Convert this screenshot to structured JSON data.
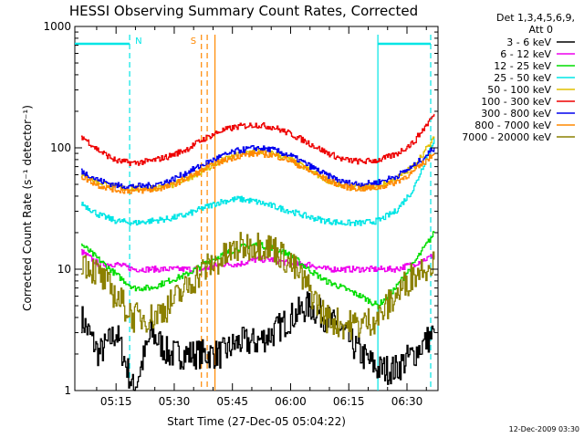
{
  "chart_data": {
    "type": "line",
    "title": "HESSI Observing Summary Count Rates, Corrected",
    "xlabel": "Start Time (27-Dec-05 05:04:22)",
    "ylabel": "Corrected Count Rate (s⁻¹ detector⁻¹)",
    "yscale": "log",
    "ylim": [
      1,
      1000
    ],
    "y_ticks": [
      "1",
      "10",
      "100",
      "1000"
    ],
    "x_ticks": [
      "05:15",
      "05:30",
      "05:45",
      "06:00",
      "06:15",
      "06:30"
    ],
    "x_tick_minutes": [
      15,
      30,
      45,
      60,
      75,
      90
    ],
    "xlim_minutes": [
      4.37,
      98
    ],
    "grid": false,
    "legend_header": [
      "Det 1,3,4,5,6,9,",
      "Att 0"
    ],
    "legend_placement": "right",
    "series": [
      {
        "name": "3 - 6 keV",
        "color": "#000000",
        "values": [
          4,
          2,
          3,
          1,
          3,
          2,
          2,
          2,
          2,
          2.5,
          2.5,
          3,
          4,
          5,
          4,
          3,
          2,
          1.5,
          1.5,
          2,
          3
        ]
      },
      {
        "name": "6 - 12 keV",
        "color": "#ee00ee",
        "values": [
          14,
          11,
          11,
          10,
          10,
          10,
          10,
          10,
          11,
          11,
          12,
          12,
          11,
          11,
          10,
          10,
          10,
          10,
          10,
          11,
          13
        ]
      },
      {
        "name": "12 - 25 keV",
        "color": "#00dd00",
        "values": [
          16,
          12,
          9,
          7,
          7,
          8,
          9,
          11,
          13,
          15,
          16,
          15,
          13,
          10,
          8,
          7,
          6,
          5,
          7,
          11,
          20
        ]
      },
      {
        "name": "25 - 50 keV",
        "color": "#00e5e5",
        "values": [
          35,
          28,
          25,
          24,
          25,
          26,
          28,
          32,
          36,
          38,
          36,
          33,
          30,
          27,
          25,
          24,
          24,
          25,
          30,
          45,
          120
        ]
      },
      {
        "name": "50 - 100 keV",
        "color": "#e0c000",
        "values": [
          60,
          52,
          47,
          46,
          47,
          48,
          55,
          65,
          78,
          88,
          95,
          90,
          80,
          66,
          55,
          48,
          47,
          48,
          55,
          70,
          120
        ]
      },
      {
        "name": "100 - 300 keV",
        "color": "#ee0000",
        "values": [
          125,
          95,
          78,
          75,
          78,
          85,
          97,
          118,
          138,
          150,
          155,
          148,
          130,
          110,
          92,
          80,
          77,
          79,
          88,
          110,
          190
        ]
      },
      {
        "name": "300 - 800 keV",
        "color": "#0000ee",
        "values": [
          64,
          54,
          49,
          48,
          49,
          53,
          62,
          73,
          85,
          95,
          100,
          96,
          86,
          72,
          60,
          52,
          50,
          52,
          58,
          70,
          100
        ]
      },
      {
        "name": "800 - 7000 keV",
        "color": "#ff8800",
        "values": [
          58,
          49,
          45,
          44,
          45,
          48,
          56,
          66,
          77,
          86,
          90,
          87,
          78,
          65,
          55,
          48,
          46,
          47,
          52,
          63,
          90
        ]
      },
      {
        "name": "7000 - 20000 keV",
        "color": "#8b8000",
        "values": [
          12,
          9,
          6,
          4,
          4,
          5,
          7,
          10,
          12,
          15,
          16,
          15,
          11,
          7,
          4,
          3.5,
          3.5,
          4,
          6,
          9,
          12
        ]
      }
    ],
    "x_minutes": [
      6,
      10.5,
      15,
      19.5,
      24,
      28.5,
      33,
      37.5,
      42,
      46.5,
      51,
      55.5,
      60,
      64.5,
      69,
      73.5,
      78,
      82.5,
      87,
      91.5,
      97
    ],
    "annotations": [
      {
        "label": "N",
        "color": "#00e5e5",
        "at_minutes": [
          18.5,
          82.5
        ]
      },
      {
        "label": "S",
        "color": "#ff8800",
        "at_minutes": [
          37,
          38.5,
          40.5
        ]
      }
    ]
  },
  "timestamp": "12-Dec-2009 03:30"
}
